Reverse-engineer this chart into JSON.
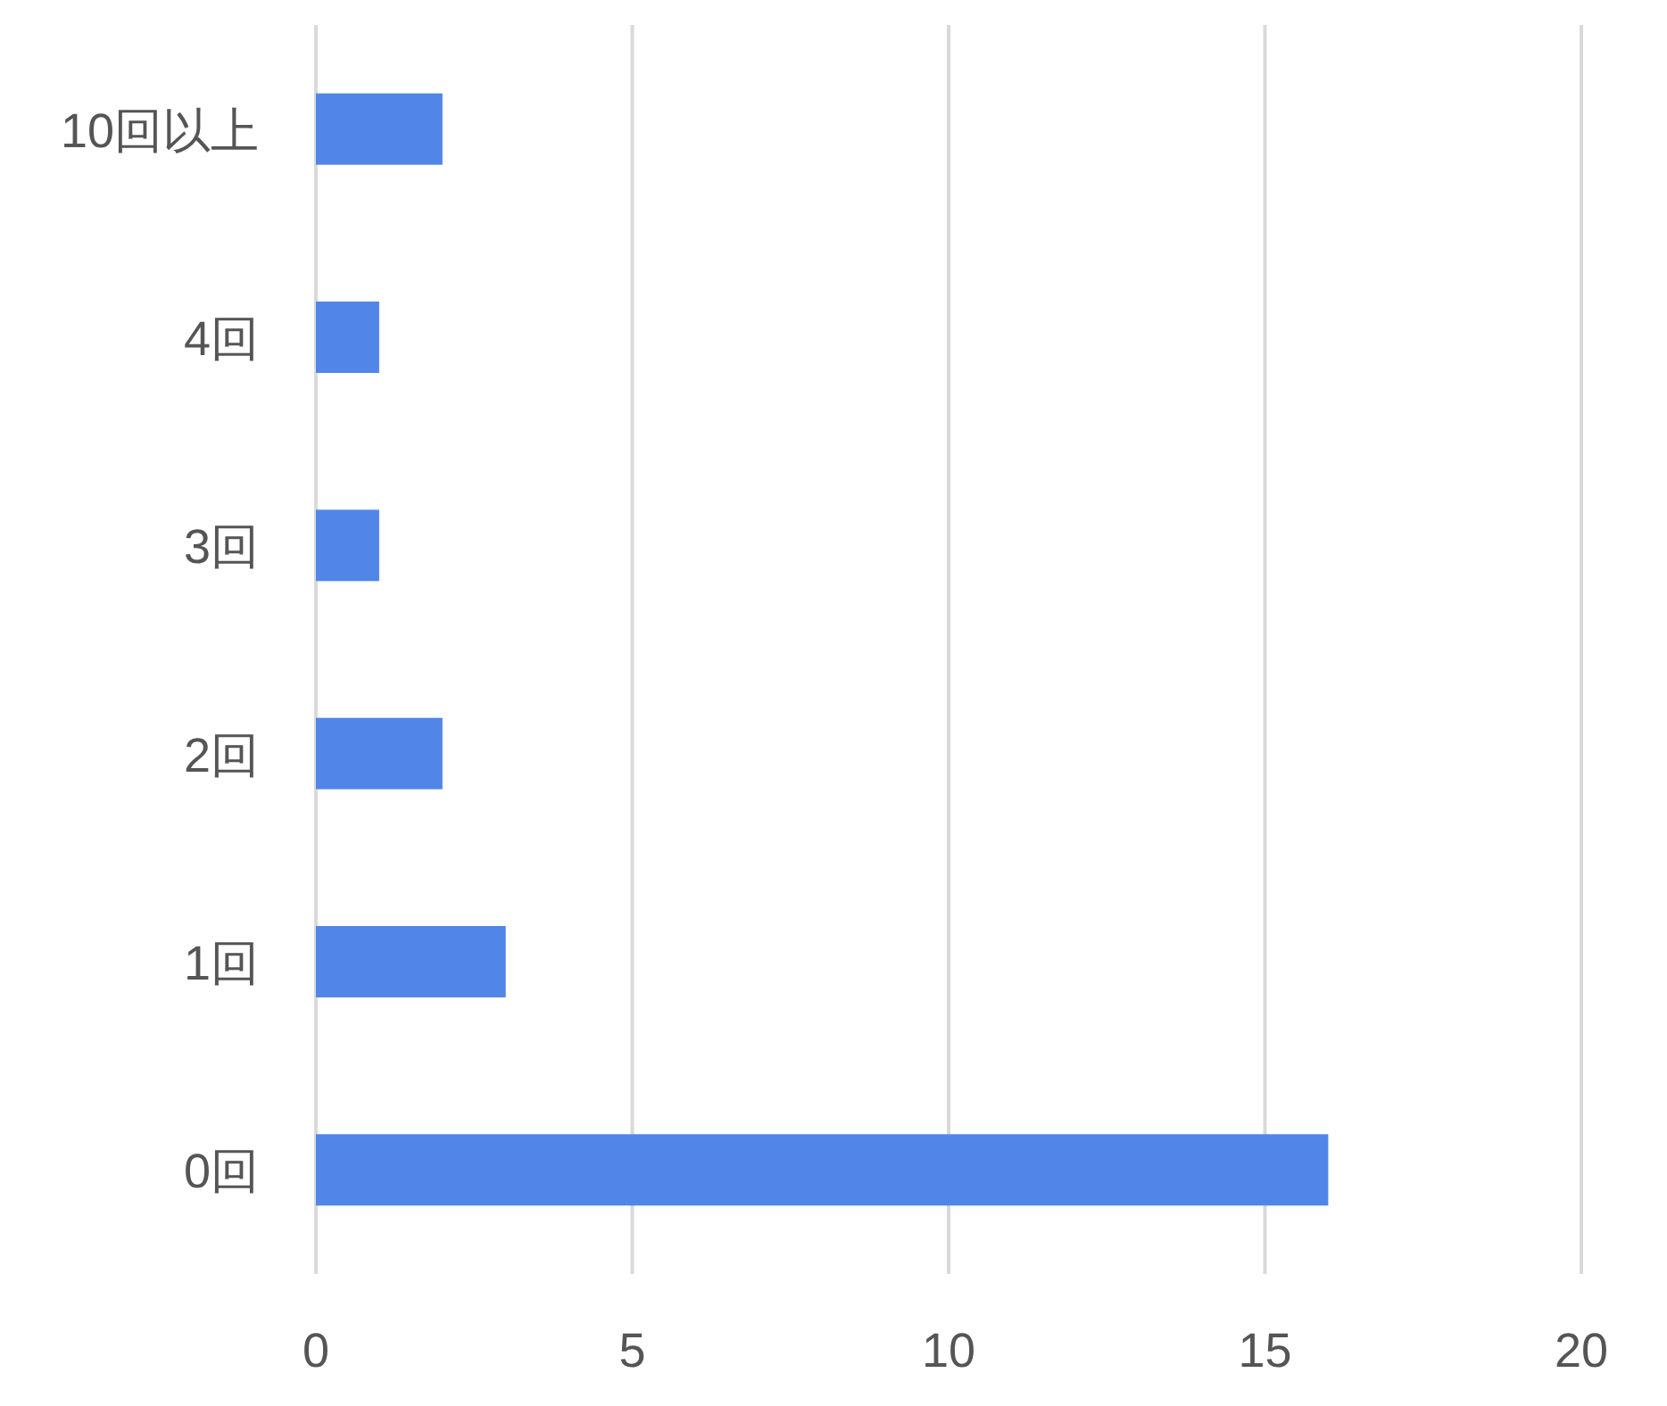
{
  "chart_data": {
    "type": "bar",
    "orientation": "horizontal",
    "categories": [
      "10回以上",
      "4回",
      "3回",
      "2回",
      "1回",
      "0回"
    ],
    "values": [
      2,
      1,
      1,
      2,
      3,
      16
    ],
    "color": "#5185e8",
    "xlim": [
      0,
      20
    ],
    "xticks": [
      0,
      5,
      10,
      15,
      20
    ],
    "grid": "x"
  }
}
